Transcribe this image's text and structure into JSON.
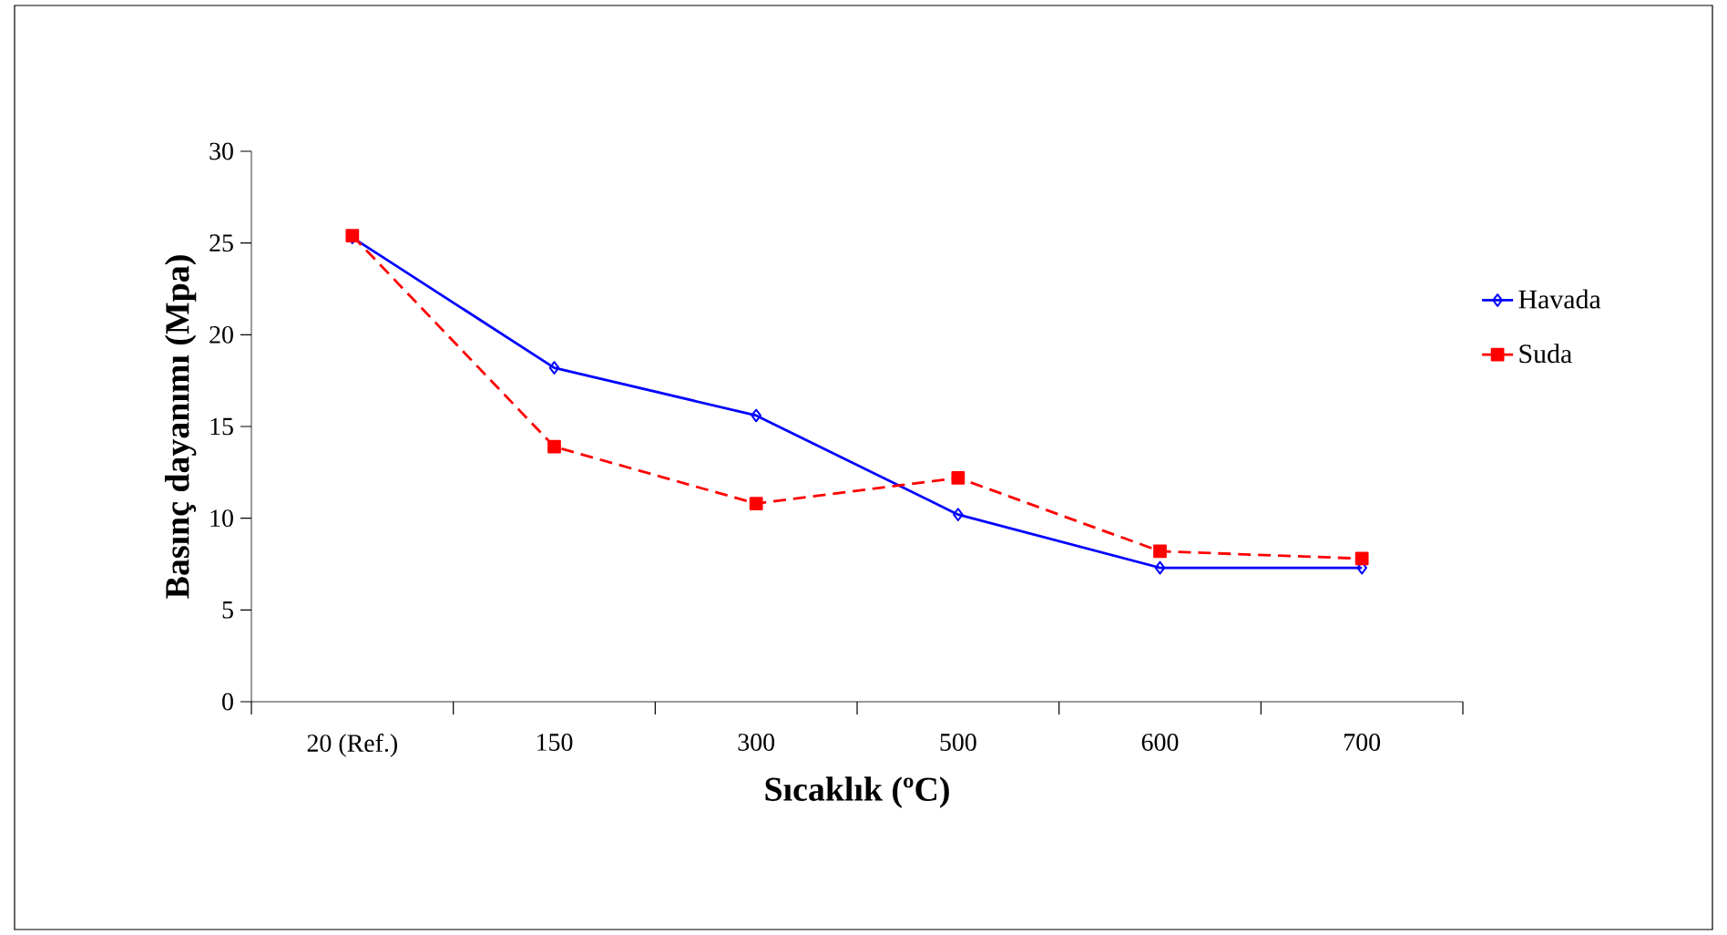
{
  "chart_data": {
    "type": "line",
    "xlabel": "Sıcaklık (ºC)",
    "ylabel": "Basınç dayanımı (Mpa)",
    "categories": [
      "20 (Ref.)",
      "150",
      "300",
      "500",
      "600",
      "700"
    ],
    "series": [
      {
        "name": "Havada",
        "color": "#0000ff",
        "marker": "diamond",
        "line_style": "solid",
        "values": [
          25.3,
          18.2,
          15.6,
          10.2,
          7.3,
          7.3
        ]
      },
      {
        "name": "Suda",
        "color": "#ff0000",
        "marker": "square",
        "line_style": "dashed",
        "values": [
          25.4,
          13.9,
          10.8,
          12.2,
          8.2,
          7.8
        ]
      }
    ],
    "ylim": [
      0,
      30
    ],
    "yticks": [
      0,
      5,
      10,
      15,
      20,
      25,
      30
    ],
    "grid": false,
    "legend": "right"
  }
}
